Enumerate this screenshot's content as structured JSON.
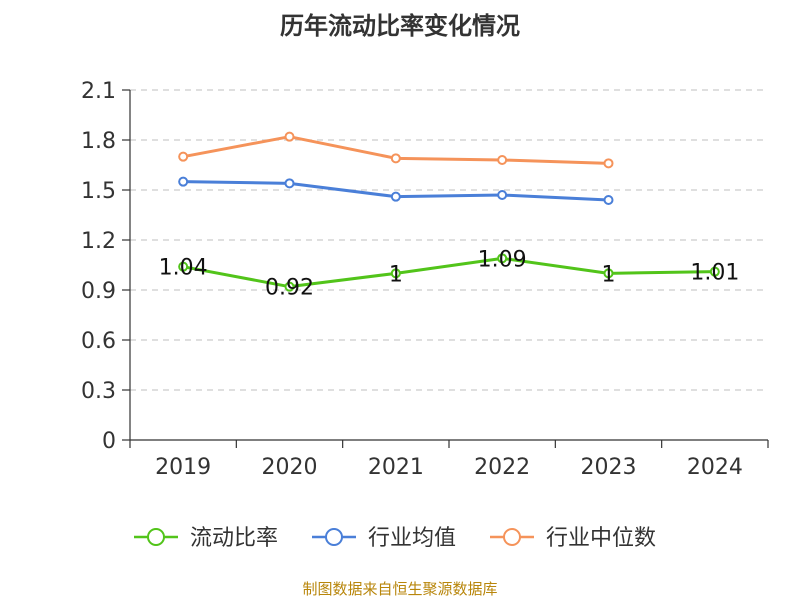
{
  "chart_data": {
    "type": "line",
    "title": "历年流动比率变化情况",
    "categories": [
      "2019",
      "2020",
      "2021",
      "2022",
      "2023",
      "2024"
    ],
    "series": [
      {
        "name": "流动比率",
        "color": "#52c41a",
        "values": [
          1.04,
          0.92,
          1,
          1.09,
          1,
          1.01
        ],
        "data_labels": [
          "1.04",
          "0.92",
          "1",
          "1.09",
          "1",
          "1.01"
        ]
      },
      {
        "name": "行业均值",
        "color": "#4a7fd8",
        "values": [
          1.55,
          1.54,
          1.46,
          1.47,
          1.44,
          null
        ]
      },
      {
        "name": "行业中位数",
        "color": "#f5935a",
        "values": [
          1.7,
          1.82,
          1.69,
          1.68,
          1.66,
          null
        ]
      }
    ],
    "ylim": [
      0,
      2.1
    ],
    "yticks": [
      "0",
      "0.3",
      "0.6",
      "0.9",
      "1.2",
      "1.5",
      "1.8",
      "2.1"
    ],
    "grid": true,
    "legend_position": "bottom",
    "source": "制图数据来自恒生聚源数据库"
  }
}
